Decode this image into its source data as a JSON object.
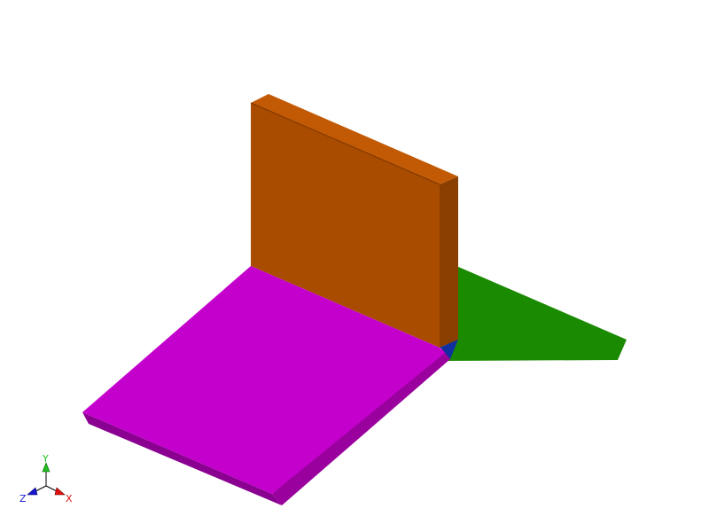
{
  "scene": {
    "background": "#ffffff",
    "parts": [
      {
        "name": "green-plate",
        "colors": {
          "top": "#1a8a00"
        }
      },
      {
        "name": "orange-wall",
        "colors": {
          "front": "#a94c00",
          "top": "#c25a05",
          "side": "#8a3e00",
          "left_edge": "#b85500"
        }
      },
      {
        "name": "magenta-base",
        "colors": {
          "top": "#c400cc",
          "front_edge": "#8a0090",
          "right_edge": "#9a009e"
        }
      },
      {
        "name": "blue-corner-wedge",
        "colors": {
          "face": "#1030a0"
        }
      }
    ]
  },
  "triad": {
    "x": {
      "label": "X",
      "color": "#e01010"
    },
    "y": {
      "label": "Y",
      "color": "#20c020"
    },
    "z": {
      "label": "Z",
      "color": "#1818d0"
    }
  }
}
